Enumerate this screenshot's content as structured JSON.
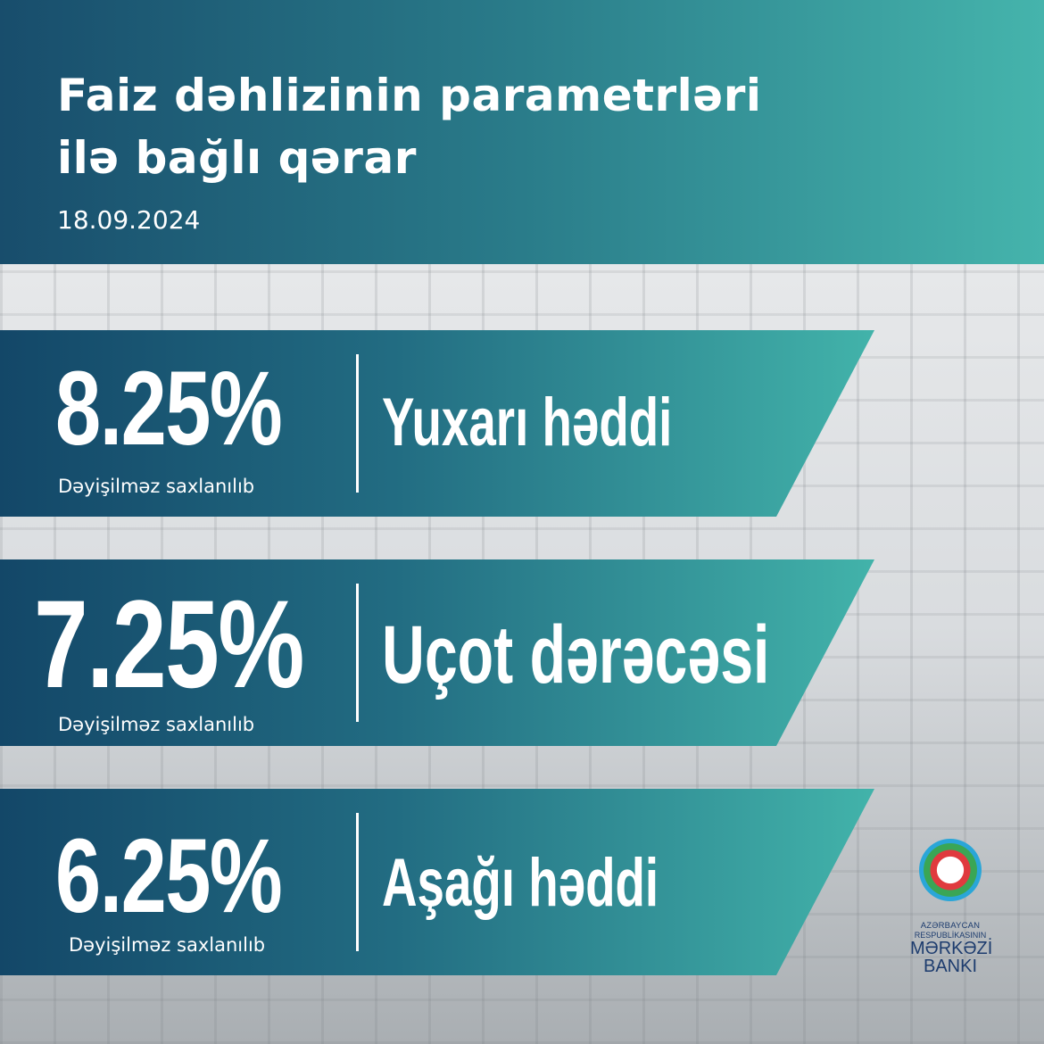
{
  "header": {
    "title_line1": "Faiz dəhlizinin parametrləri",
    "title_line2": "ilə bağlı qərar",
    "date": "18.09.2024"
  },
  "rates": [
    {
      "value": "8.25%",
      "status": "Dəyişilməz saxlanılıb",
      "label": "Yuxarı həddi"
    },
    {
      "value": "7.25%",
      "status": "Dəyişilməz saxlanılıb",
      "label": "Uçot dərəcəsi"
    },
    {
      "value": "6.25%",
      "status": "Dəyişilməz saxlanılıb",
      "label": "Aşağı həddi"
    }
  ],
  "logo": {
    "line1": "AZƏRBAYCAN",
    "line2": "RESPUBLİKASININ",
    "line3": "MƏRKƏZİ",
    "line4": "BANKI"
  },
  "colors": {
    "dark": "#134768",
    "teal": "#42b3aa"
  }
}
